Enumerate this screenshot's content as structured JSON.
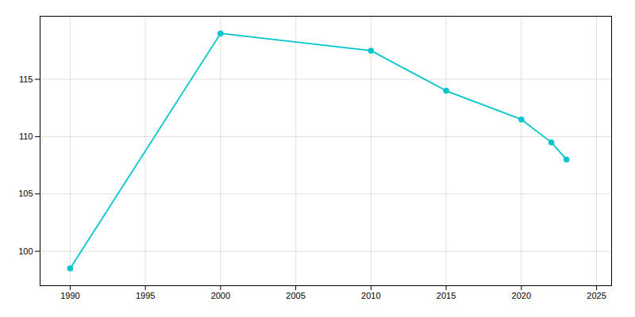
{
  "chart_data": {
    "type": "line",
    "x": [
      1990,
      2000,
      2010,
      2015,
      2020,
      2022,
      2023
    ],
    "values": [
      98.5,
      119.0,
      117.5,
      114.0,
      111.5,
      109.5,
      108.0
    ],
    "color": "#00C5CD",
    "marker": "circle",
    "xlim": [
      1988,
      2026
    ],
    "ylim": [
      97,
      120.5
    ],
    "xticks": [
      1990,
      1995,
      2000,
      2005,
      2010,
      2015,
      2020,
      2025
    ],
    "yticks": [
      100,
      105,
      110,
      115
    ],
    "grid": true
  }
}
